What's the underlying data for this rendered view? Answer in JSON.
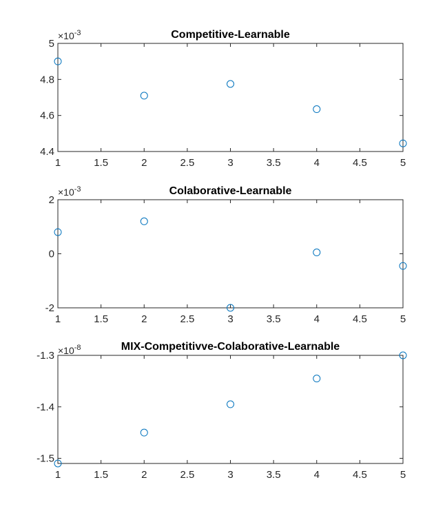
{
  "chart_data": [
    {
      "type": "scatter",
      "title": "Competitive-Learnable",
      "xlabel": "",
      "ylabel": "",
      "exponent": "-3",
      "x": [
        1,
        2,
        3,
        4,
        5
      ],
      "y": [
        4.9,
        4.71,
        4.775,
        4.635,
        4.445
      ],
      "xlim": [
        1,
        5
      ],
      "ylim": [
        4.4,
        5
      ],
      "xticks": [
        1,
        1.5,
        2,
        2.5,
        3,
        3.5,
        4,
        4.5,
        5
      ],
      "xtick_labels": [
        "1",
        "1.5",
        "2",
        "2.5",
        "3",
        "3.5",
        "4",
        "4.5",
        "5"
      ],
      "yticks": [
        4.4,
        4.6,
        4.8,
        5
      ],
      "ytick_labels": [
        "4.4",
        "4.6",
        "4.8",
        "5"
      ],
      "marker": "circle",
      "marker_color": "#0072bd",
      "grid": false,
      "legend": "none"
    },
    {
      "type": "scatter",
      "title": "Colaborative-Learnable",
      "xlabel": "",
      "ylabel": "",
      "exponent": "-3",
      "x": [
        1,
        2,
        3,
        4,
        5
      ],
      "y": [
        0.8,
        1.2,
        -2.0,
        0.05,
        -0.45
      ],
      "xlim": [
        1,
        5
      ],
      "ylim": [
        -2,
        2
      ],
      "xticks": [
        1,
        1.5,
        2,
        2.5,
        3,
        3.5,
        4,
        4.5,
        5
      ],
      "xtick_labels": [
        "1",
        "1.5",
        "2",
        "2.5",
        "3",
        "3.5",
        "4",
        "4.5",
        "5"
      ],
      "yticks": [
        -2,
        0,
        2
      ],
      "ytick_labels": [
        "-2",
        "0",
        "2"
      ],
      "marker": "circle",
      "marker_color": "#0072bd",
      "grid": false,
      "legend": "none"
    },
    {
      "type": "scatter",
      "title": "MIX-Competitivve-Colaborative-Learnable",
      "xlabel": "",
      "ylabel": "",
      "exponent": "-8",
      "x": [
        1,
        2,
        3,
        4,
        5
      ],
      "y": [
        -1.51,
        -1.45,
        -1.395,
        -1.345,
        -1.3
      ],
      "xlim": [
        1,
        5
      ],
      "ylim": [
        -1.51,
        -1.3
      ],
      "xticks": [
        1,
        1.5,
        2,
        2.5,
        3,
        3.5,
        4,
        4.5,
        5
      ],
      "xtick_labels": [
        "1",
        "1.5",
        "2",
        "2.5",
        "3",
        "3.5",
        "4",
        "4.5",
        "5"
      ],
      "yticks": [
        -1.5,
        -1.4,
        -1.3
      ],
      "ytick_labels": [
        "-1.5",
        "-1.4",
        "-1.3"
      ],
      "marker": "circle",
      "marker_color": "#0072bd",
      "grid": false,
      "legend": "none"
    }
  ]
}
